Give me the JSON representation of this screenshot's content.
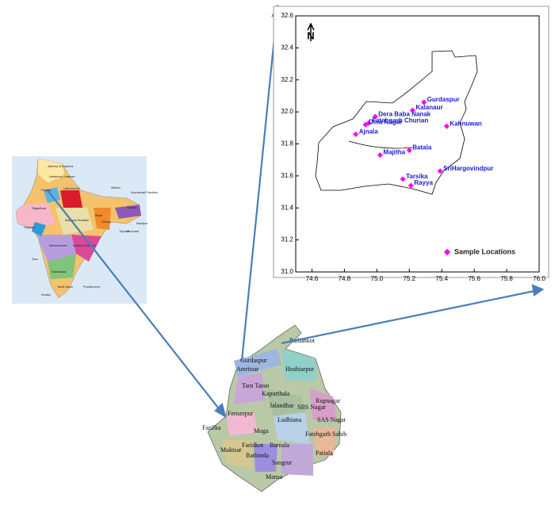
{
  "chart_data": {
    "type": "scatter",
    "x": [
      75.29,
      75.22,
      74.99,
      74.95,
      74.93,
      74.87,
      75.43,
      75.2,
      75.02,
      75.39,
      75.16,
      75.21
    ],
    "series": [
      {
        "name": "Sample Locations",
        "color": "#ff00ff",
        "values": [
          32.06,
          32.01,
          31.97,
          31.93,
          31.92,
          31.86,
          31.91,
          31.76,
          31.73,
          31.63,
          31.58,
          31.54
        ]
      }
    ],
    "point_labels": [
      "Gurdaspur",
      "Kalanaur",
      "Dera Baba Nanak",
      "Fatehgarh Churian",
      "Dina Nagar",
      "Ajnala",
      "Kahnuwan",
      "Batala",
      "Majitha",
      "SriHargovindpur",
      "Tarsika",
      "Rayya"
    ],
    "xlim": [
      74.5,
      76.0
    ],
    "ylim": [
      31.0,
      32.6
    ],
    "xticks": [
      74.6,
      74.8,
      {
        "value": 75,
        "label": "75.0"
      },
      75.2,
      75.4,
      75.6,
      75.8,
      {
        "value": 76,
        "label": "76.0"
      }
    ],
    "yticks": [
      {
        "value": 31,
        "label": "31.0"
      },
      31.2,
      31.4,
      31.6,
      31.8,
      {
        "value": 32,
        "label": "32.0"
      },
      32.2,
      32.4,
      32.6
    ],
    "north_label": "N",
    "legend": "bottom-right"
  },
  "india_map": {
    "labels": [
      "Jammu & Kashmir",
      "Himachal Pradesh",
      "Uttaranchal",
      "Punjab",
      "Rajasthan",
      "Gujarat",
      "Madhya Pradesh",
      "Maharashtra",
      "Andhra Pradesh",
      "Karnataka",
      "Goa",
      "Kerala",
      "Tamil Nadu",
      "Pondicherry",
      "Sikkim",
      "Arunachal Pradesh",
      "Assam",
      "Orissa",
      "Bihar",
      "Manipur",
      "Tripura",
      "Mizoram"
    ]
  },
  "punjab_map": {
    "districts": [
      "Pathankot",
      "Gurdaspur",
      "Amritsar",
      "Hoshiarpur",
      "Tarn Taran",
      "Kapurthala",
      "Jalandhar",
      "SBS Nagar",
      "Rupnagar",
      "Ferozepur",
      "Ludhiana",
      "Moga",
      "SAS Nagar",
      "Fazilka",
      "Faridkot",
      "Muktsar",
      "Bathinda",
      "Barnala",
      "Fatehgarh Sahib",
      "Patiala",
      "Sangrur",
      "Mansa"
    ]
  }
}
